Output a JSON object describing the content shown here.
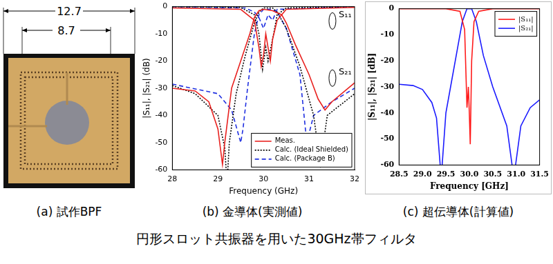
{
  "figure_title": "円形スロット共振器を用いた30GHz帯フィルタ",
  "photo": {
    "caption": "(a) 試作BPF",
    "dimensions": [
      12.7,
      8.7
    ]
  },
  "chart_data": [
    {
      "type": "line",
      "caption": "(b) 金導体(実測値)",
      "x_label": "Frequency (GHz)",
      "y_label": "|S₁₁|, |S₂₁| (dB)",
      "xlim": [
        28,
        32
      ],
      "xticks": [
        28,
        29,
        30,
        31,
        32
      ],
      "ylim": [
        -60,
        0
      ],
      "yticks": [
        -60,
        -50,
        -40,
        -30,
        -20,
        -10,
        0
      ],
      "grid": false,
      "legend": "lower right",
      "annotations": [
        {
          "text": "S₁₁",
          "x": 31.65,
          "y": -3
        },
        {
          "text": "S₂₁",
          "x": 31.65,
          "y": -24
        }
      ],
      "series": [
        {
          "name": "Meas.",
          "color": "#e8211f",
          "line_style": "solid",
          "curves": [
            {
              "x": [
                28,
                28.5,
                28.8,
                29.0,
                29.1,
                29.15,
                29.3,
                29.5,
                29.7,
                29.8,
                29.9,
                30.0,
                30.2,
                30.4,
                30.5,
                30.7,
                31.0,
                31.2,
                31.35,
                31.5,
                32
              ],
              "values": [
                -30,
                -31,
                -35,
                -45,
                -58,
                -50,
                -30,
                -20,
                -10,
                -4,
                -1.5,
                -1,
                -1.5,
                -3,
                -6,
                -14,
                -25,
                -34,
                -38,
                -35,
                -28
              ]
            },
            {
              "x": [
                28,
                29.5,
                29.8,
                29.9,
                29.95,
                30.0,
                30.05,
                30.1,
                30.15,
                30.2,
                30.3,
                30.5,
                32
              ],
              "values": [
                -0.5,
                -1,
                -5,
                -15,
                -22,
                -18,
                -10,
                -15,
                -20,
                -12,
                -5,
                -1,
                -0.3
              ]
            }
          ]
        },
        {
          "name": "Calc. (Ideal Shielded)",
          "color": "#000000",
          "line_style": "dotted",
          "curves": [
            {
              "x": [
                28,
                28.5,
                29.0,
                29.15,
                29.2,
                29.25,
                29.4,
                29.6,
                29.8,
                29.9,
                30.0,
                30.2,
                30.3,
                30.5,
                30.8,
                31.1,
                31.25,
                31.4,
                32
              ],
              "values": [
                -29,
                -32,
                -40,
                -52,
                -65,
                -50,
                -32,
                -18,
                -6,
                -2,
                -0.5,
                -0.5,
                -2,
                -8,
                -22,
                -40,
                -58,
                -40,
                -32
              ]
            },
            {
              "x": [
                28,
                29.5,
                29.8,
                29.9,
                29.98,
                30.05,
                30.1,
                30.2,
                30.3,
                30.5,
                32
              ],
              "values": [
                0,
                -0.3,
                -3,
                -10,
                -23,
                -15,
                -20,
                -12,
                -3,
                -0.5,
                0
              ]
            }
          ]
        },
        {
          "name": "Calc. (Package B)",
          "color": "#1f2fe0",
          "line_style": "dashed",
          "curves": [
            {
              "x": [
                28,
                29.0,
                29.3,
                29.5,
                29.55,
                29.65,
                29.8,
                29.9,
                30.0,
                30.2,
                30.3,
                30.5,
                30.8,
                30.95,
                31.1,
                31.5,
                32
              ],
              "values": [
                -28.5,
                -32,
                -38,
                -50,
                -45,
                -30,
                -10,
                -3,
                -1,
                -1,
                -2,
                -8,
                -25,
                -50,
                -40,
                -35,
                -30
              ]
            },
            {
              "x": [
                28,
                29.6,
                29.8,
                29.9,
                30.0,
                30.1,
                30.2,
                30.3,
                32
              ],
              "values": [
                0,
                -0.5,
                -2,
                -4,
                -8,
                -3,
                -5,
                -1,
                0
              ]
            }
          ]
        }
      ]
    },
    {
      "type": "line",
      "caption": "(c) 超伝導体(計算値)",
      "x_label": "Frequency [GHz]",
      "y_label": "|S₁₁|, |S₂₁| [dB]",
      "xlim": [
        28.5,
        31.5
      ],
      "xticks": [
        28.5,
        {
          "value": 29,
          "label": "29.0"
        },
        29.5,
        {
          "value": 30,
          "label": "30.0"
        },
        30.5,
        {
          "value": 31,
          "label": "31.0"
        },
        31.5
      ],
      "ylim": [
        -60,
        0
      ],
      "yticks": [
        -60,
        -50,
        -40,
        -30,
        -20,
        -10,
        0
      ],
      "grid": false,
      "legend": "upper right",
      "series": [
        {
          "name": "|S₁₁|",
          "color": "#ff1a1a",
          "line_style": "solid",
          "curves": [
            {
              "x": [
                28.5,
                29.5,
                29.8,
                29.9,
                29.95,
                29.98,
                30.0,
                30.02,
                30.05,
                30.1,
                30.2,
                30.5,
                31.5
              ],
              "values": [
                0,
                0,
                -1,
                -8,
                -38,
                -30,
                -40,
                -52,
                -20,
                -5,
                -1,
                0,
                0
              ]
            }
          ]
        },
        {
          "name": "|S₂₁|",
          "color": "#1a1aff",
          "line_style": "solid",
          "curves": [
            {
              "x": [
                28.5,
                28.8,
                29.0,
                29.2,
                29.3,
                29.4,
                29.5,
                29.6,
                29.75,
                29.85,
                29.95,
                30.05,
                30.15,
                30.3,
                30.5,
                30.8,
                30.95,
                31.1,
                31.3,
                31.5
              ],
              "values": [
                -29,
                -29.5,
                -31,
                -36,
                -42,
                -65,
                -40,
                -30,
                -15,
                -5,
                0,
                0,
                -5,
                -18,
                -30,
                -45,
                -65,
                -45,
                -38,
                -35
              ]
            }
          ]
        }
      ]
    }
  ]
}
